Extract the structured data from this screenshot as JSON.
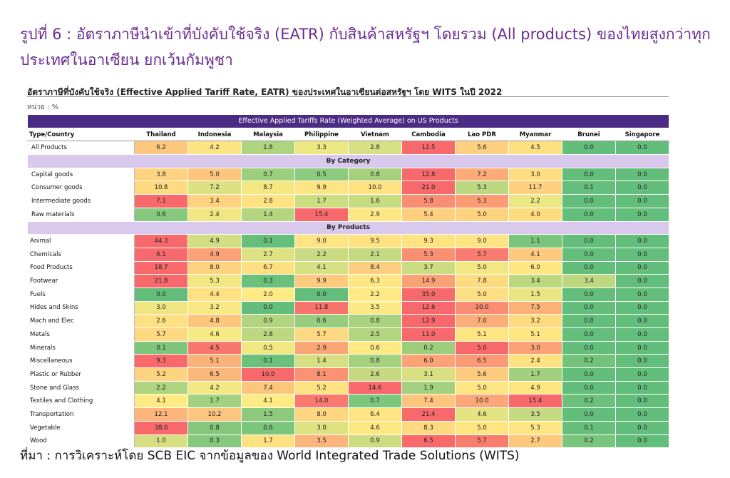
{
  "figure_title": "รูปที่ 6 : อัตราภาษีนำเข้าที่บังคับใช้จริง (EATR) กับสินค้าสหรัฐฯ โดยรวม (All products) ของไทยสูงกว่าทุกประเทศในอาเซียน ยกเว้นกัมพูชา",
  "caption": "อัตราภาษีที่บังคับใช้จริง (Effective Applied Tariff Rate, EATR) ของประเทศในอาเซียนต่อสหรัฐฯ โดย WITS ในปี 2022",
  "unit": "หน่วย : %",
  "source": "ที่มา : การวิเคราะห์โดย SCB EIC จากข้อมูลของ World Integrated Trade Solutions (WITS)",
  "colors": {
    "header_bg": "#4b2b83",
    "section_bg": "#d9c9ec",
    "low": "#63be7b",
    "mid": "#ffeb84",
    "high": "#f8696b"
  },
  "chart_data": {
    "type": "heatmap",
    "title": "Effective Applied Tariffs Rate (Weighted Average) on US Products",
    "corner_label": "Type/Country",
    "columns": [
      "Thailand",
      "Indonesia",
      "Malaysia",
      "Philippine",
      "Vietnam",
      "Cambodia",
      "Lao PDR",
      "Myanmar",
      "Brunei",
      "Singapore"
    ],
    "sections": [
      {
        "name": "",
        "rows": [
          {
            "label": "All Products",
            "values": [
              6.2,
              4.2,
              1.8,
              3.3,
              2.8,
              12.5,
              5.6,
              4.5,
              0.0,
              0.0
            ]
          }
        ]
      },
      {
        "name": "By Category",
        "rows": [
          {
            "label": "Capital goods",
            "values": [
              3.8,
              5.0,
              0.7,
              0.5,
              0.8,
              12.8,
              7.2,
              3.0,
              0.0,
              0.0
            ]
          },
          {
            "label": "Consumer goods",
            "values": [
              10.8,
              7.2,
              8.7,
              9.9,
              10.0,
              21.0,
              5.3,
              11.7,
              0.1,
              0.0
            ]
          },
          {
            "label": "Intermediate goods",
            "values": [
              7.1,
              3.4,
              2.8,
              1.7,
              1.6,
              5.8,
              5.3,
              2.2,
              0.0,
              0.0
            ]
          },
          {
            "label": "Raw materials",
            "values": [
              0.6,
              2.4,
              1.4,
              15.4,
              2.9,
              5.4,
              5.0,
              4.0,
              0.0,
              0.0
            ]
          }
        ]
      },
      {
        "name": "By Products",
        "rows": [
          {
            "label": "Animal",
            "values": [
              44.3,
              4.9,
              0.1,
              9.0,
              9.5,
              9.3,
              9.0,
              1.1,
              0.0,
              0.0
            ]
          },
          {
            "label": "Chemicals",
            "values": [
              6.1,
              4.9,
              2.7,
              2.2,
              2.1,
              5.3,
              5.7,
              4.1,
              0.0,
              0.0
            ]
          },
          {
            "label": "Food Products",
            "values": [
              18.7,
              8.0,
              6.7,
              4.1,
              8.4,
              3.7,
              5.0,
              6.0,
              0.0,
              0.0
            ]
          },
          {
            "label": "Footwear",
            "values": [
              21.8,
              5.3,
              0.3,
              9.9,
              6.3,
              14.9,
              7.8,
              3.4,
              3.4,
              0.0
            ]
          },
          {
            "label": "Fuels",
            "values": [
              0.0,
              4.4,
              2.0,
              0.0,
              2.2,
              35.0,
              5.0,
              1.5,
              0.0,
              0.0
            ]
          },
          {
            "label": "Hides and Skins",
            "values": [
              3.0,
              3.2,
              0.0,
              11.8,
              3.5,
              12.6,
              10.0,
              7.5,
              0.0,
              0.0
            ]
          },
          {
            "label": "Mach and Elec",
            "values": [
              2.6,
              4.8,
              0.9,
              0.6,
              0.8,
              12.9,
              7.0,
              3.2,
              0.0,
              0.0
            ]
          },
          {
            "label": "Metals",
            "values": [
              5.7,
              4.6,
              2.8,
              5.7,
              2.5,
              11.0,
              5.1,
              5.1,
              0.0,
              0.0
            ]
          },
          {
            "label": "Minerals",
            "values": [
              0.1,
              4.5,
              0.5,
              2.9,
              0.6,
              0.2,
              5.0,
              3.0,
              0.0,
              0.0
            ]
          },
          {
            "label": "Miscellaneous",
            "values": [
              9.3,
              5.1,
              0.1,
              1.4,
              0.8,
              6.0,
              6.5,
              2.4,
              0.2,
              0.0
            ]
          },
          {
            "label": "Plastic or Rubber",
            "values": [
              5.2,
              6.5,
              10.0,
              8.1,
              2.6,
              3.1,
              5.6,
              1.7,
              0.0,
              0.0
            ]
          },
          {
            "label": "Stone and Glass",
            "values": [
              2.2,
              4.2,
              7.4,
              5.2,
              14.6,
              1.9,
              5.0,
              4.9,
              0.0,
              0.0
            ]
          },
          {
            "label": "Textiles and Clothing",
            "values": [
              4.1,
              1.7,
              4.1,
              14.0,
              0.7,
              7.4,
              10.0,
              15.4,
              0.2,
              0.0
            ]
          },
          {
            "label": "Transportation",
            "values": [
              12.1,
              10.2,
              1.5,
              8.0,
              6.4,
              21.4,
              4.6,
              3.5,
              0.0,
              0.0
            ]
          },
          {
            "label": "Vegetable",
            "values": [
              38.0,
              0.8,
              0.6,
              3.0,
              4.6,
              8.3,
              5.0,
              5.3,
              0.1,
              0.0
            ]
          },
          {
            "label": "Wood",
            "values": [
              1.0,
              0.3,
              1.7,
              3.5,
              0.9,
              6.5,
              5.7,
              2.7,
              0.2,
              0.0
            ]
          }
        ]
      }
    ]
  }
}
